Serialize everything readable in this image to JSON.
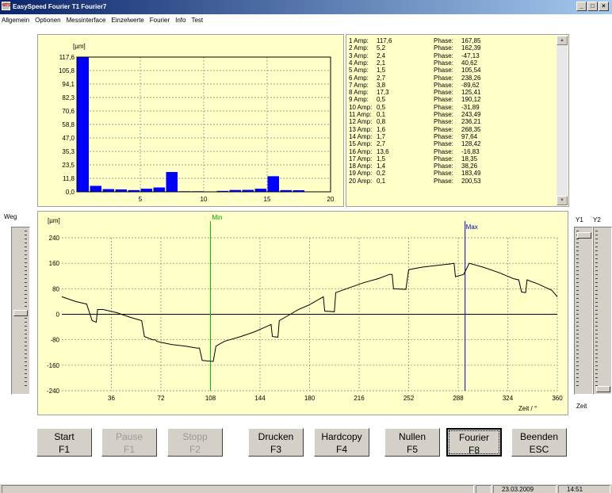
{
  "window": {
    "title": "EasySpeed  Fourier T1  Fourier7",
    "icon_label": "MTS",
    "controls": [
      "_",
      "□",
      "×"
    ]
  },
  "menu": [
    "Allgemein",
    "Optionen",
    "Messinterface",
    "Einzelwerte",
    "Fourier",
    "Info",
    "Test"
  ],
  "spectrum": {
    "unit": "[µm]",
    "yticks": [
      "117,6",
      "105,8",
      "94,1",
      "82,3",
      "70,6",
      "58,8",
      "47,0",
      "35,3",
      "23,5",
      "11,8",
      "0,0"
    ],
    "xticks": [
      "5",
      "10",
      "15",
      "20"
    ]
  },
  "fourier_table": [
    {
      "label": "1 Amp:",
      "amp": "117,6",
      "phase_label": "Phase:",
      "phase": "167,85"
    },
    {
      "label": "2 Amp:",
      "amp": "5,2",
      "phase_label": "Phase:",
      "phase": "162,39"
    },
    {
      "label": "3 Amp:",
      "amp": "2,4",
      "phase_label": "Phase:",
      "phase": "-47,13"
    },
    {
      "label": "4 Amp:",
      "amp": "2,1",
      "phase_label": "Phase:",
      "phase": "40,62"
    },
    {
      "label": "5 Amp:",
      "amp": "1,5",
      "phase_label": "Phase:",
      "phase": "105,54"
    },
    {
      "label": "6 Amp:",
      "amp": "2,7",
      "phase_label": "Phase:",
      "phase": "238,26"
    },
    {
      "label": "7 Amp:",
      "amp": "3,8",
      "phase_label": "Phase:",
      "phase": "-89,62"
    },
    {
      "label": "8 Amp:",
      "amp": "17,3",
      "phase_label": "Phase:",
      "phase": "125,41"
    },
    {
      "label": "9 Amp:",
      "amp": "0,5",
      "phase_label": "Phase:",
      "phase": "190,12"
    },
    {
      "label": "10 Amp:",
      "amp": "0,5",
      "phase_label": "Phase:",
      "phase": "-31,89"
    },
    {
      "label": "11 Amp:",
      "amp": "0,1",
      "phase_label": "Phase:",
      "phase": "243,49"
    },
    {
      "label": "12 Amp:",
      "amp": "0,8",
      "phase_label": "Phase:",
      "phase": "236,21"
    },
    {
      "label": "13 Amp:",
      "amp": "1,6",
      "phase_label": "Phase:",
      "phase": "268,35"
    },
    {
      "label": "14 Amp:",
      "amp": "1,7",
      "phase_label": "Phase:",
      "phase": "97,64"
    },
    {
      "label": "15 Amp:",
      "amp": "2,7",
      "phase_label": "Phase:",
      "phase": "128,42"
    },
    {
      "label": "16 Amp:",
      "amp": "13,6",
      "phase_label": "Phase:",
      "phase": "-16,83"
    },
    {
      "label": "17 Amp:",
      "amp": "1,5",
      "phase_label": "Phase:",
      "phase": "18,35"
    },
    {
      "label": "18 Amp:",
      "amp": "1,4",
      "phase_label": "Phase:",
      "phase": "38,26"
    },
    {
      "label": "19 Amp:",
      "amp": "0,2",
      "phase_label": "Phase:",
      "phase": "183,49"
    },
    {
      "label": "20 Amp:",
      "amp": "0,1",
      "phase_label": "Phase:",
      "phase": "200,53"
    }
  ],
  "weg_label": "Weg",
  "y1_label": "Y1",
  "y2_label": "Y2",
  "zeit_label": "Zeit",
  "waveform": {
    "unit": "[µm]",
    "yticks": [
      "240",
      "160",
      "80",
      "0",
      "-80",
      "-160",
      "-240"
    ],
    "xticks": [
      "36",
      "72",
      "108",
      "144",
      "180",
      "216",
      "252",
      "288",
      "324",
      "360"
    ],
    "xlabel": "Zeit / °",
    "min_label": "Min",
    "max_label": "Max"
  },
  "buttons": [
    {
      "name": "start-button",
      "line1": "Start",
      "line2": "F1",
      "disabled": false
    },
    {
      "name": "pause-button",
      "line1": "Pause",
      "line2": "F1",
      "disabled": true
    },
    {
      "name": "stopp-button",
      "line1": "Stopp",
      "line2": "F2",
      "disabled": true
    },
    {
      "name": "drucken-button",
      "line1": "Drucken",
      "line2": "F3",
      "disabled": false
    },
    {
      "name": "hardcopy-button",
      "line1": "Hardcopy",
      "line2": "F4",
      "disabled": false
    },
    {
      "name": "nullen-button",
      "line1": "Nullen",
      "line2": "F5",
      "disabled": false
    },
    {
      "name": "fourier-button",
      "line1": "Fourier",
      "line2": "F8",
      "disabled": false
    },
    {
      "name": "beenden-button",
      "line1": "Beenden",
      "line2": "ESC",
      "disabled": false
    }
  ],
  "status": {
    "date": "23.03.2009",
    "time": "14:51"
  },
  "chart_data": [
    {
      "type": "bar",
      "unit_label": "[µm]",
      "x": [
        1,
        2,
        3,
        4,
        5,
        6,
        7,
        8,
        9,
        10,
        11,
        12,
        13,
        14,
        15,
        16,
        17,
        18,
        19,
        20
      ],
      "values": [
        117.6,
        5.2,
        2.4,
        2.1,
        1.5,
        2.7,
        3.8,
        17.3,
        0.5,
        0.5,
        0.1,
        0.8,
        1.6,
        1.7,
        2.7,
        13.6,
        1.5,
        1.4,
        0.2,
        0.1
      ],
      "ylim": [
        0,
        117.6
      ],
      "xlim": [
        0,
        20
      ],
      "grid": true,
      "color": "#0000ff"
    },
    {
      "type": "line",
      "unit_label": "[µm]",
      "xlabel": "Zeit / °",
      "xlim": [
        0,
        360
      ],
      "ylim": [
        -240,
        240
      ],
      "grid": true,
      "color": "#000000",
      "min_marker_x": 108,
      "max_marker_x": 293,
      "points": [
        [
          0,
          55
        ],
        [
          10,
          40
        ],
        [
          18,
          32
        ],
        [
          22,
          -20
        ],
        [
          25,
          -25
        ],
        [
          26,
          15
        ],
        [
          30,
          15
        ],
        [
          40,
          5
        ],
        [
          50,
          -10
        ],
        [
          58,
          -20
        ],
        [
          60,
          -70
        ],
        [
          66,
          -80
        ],
        [
          68,
          -80
        ],
        [
          69,
          -85
        ],
        [
          72,
          -88
        ],
        [
          80,
          -95
        ],
        [
          90,
          -100
        ],
        [
          98,
          -106
        ],
        [
          100,
          -106
        ],
        [
          102,
          -145
        ],
        [
          110,
          -148
        ],
        [
          112,
          -100
        ],
        [
          118,
          -85
        ],
        [
          130,
          -70
        ],
        [
          140,
          -55
        ],
        [
          148,
          -40
        ],
        [
          152,
          -32
        ],
        [
          153,
          -70
        ],
        [
          157,
          -72
        ],
        [
          158,
          -20
        ],
        [
          166,
          0
        ],
        [
          172,
          15
        ],
        [
          180,
          30
        ],
        [
          188,
          50
        ],
        [
          190,
          55
        ],
        [
          191,
          10
        ],
        [
          198,
          8
        ],
        [
          199,
          68
        ],
        [
          210,
          85
        ],
        [
          220,
          100
        ],
        [
          230,
          112
        ],
        [
          238,
          125
        ],
        [
          240,
          125
        ],
        [
          241,
          80
        ],
        [
          250,
          78
        ],
        [
          252,
          140
        ],
        [
          262,
          148
        ],
        [
          272,
          153
        ],
        [
          282,
          158
        ],
        [
          285,
          160
        ],
        [
          286,
          118
        ],
        [
          292,
          125
        ],
        [
          296,
          160
        ],
        [
          306,
          148
        ],
        [
          318,
          130
        ],
        [
          328,
          112
        ],
        [
          332,
          108
        ],
        [
          334,
          70
        ],
        [
          337,
          68
        ],
        [
          338,
          108
        ],
        [
          346,
          95
        ],
        [
          356,
          75
        ],
        [
          360,
          55
        ]
      ]
    }
  ]
}
